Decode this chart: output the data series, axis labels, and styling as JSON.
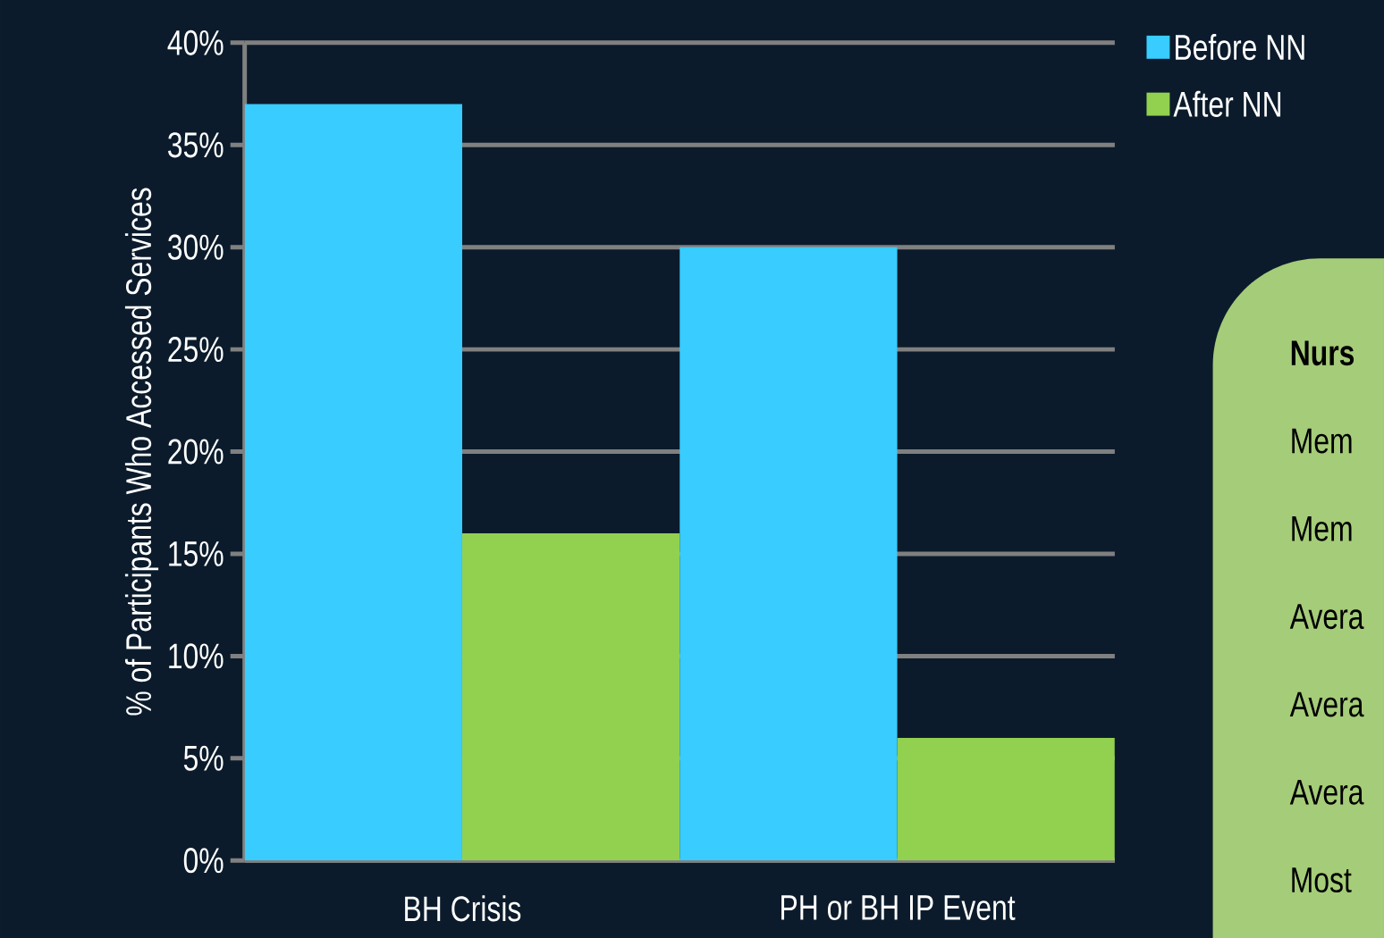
{
  "chart_data": {
    "type": "bar",
    "ylabel": "% of Participants Who Accessed Services",
    "categories": [
      "BH Crisis",
      "PH or BH IP Event"
    ],
    "series": [
      {
        "name": "Before NN",
        "color": "#38ccff",
        "values": [
          37,
          30
        ]
      },
      {
        "name": "After NN",
        "color": "#92d050",
        "values": [
          16,
          6
        ]
      }
    ],
    "ylim": [
      0,
      40
    ],
    "yticks": [
      {
        "value": 0,
        "label": "0%"
      },
      {
        "value": 5,
        "label": "5%"
      },
      {
        "value": 10,
        "label": "10%"
      },
      {
        "value": 15,
        "label": "15%"
      },
      {
        "value": 20,
        "label": "20%"
      },
      {
        "value": 25,
        "label": "25%"
      },
      {
        "value": 30,
        "label": "30%"
      },
      {
        "value": 35,
        "label": "35%"
      },
      {
        "value": 40,
        "label": "40%"
      }
    ],
    "grid": "y",
    "legend": "top right",
    "annotations": [
      "Nurs",
      "Mem",
      "Mem",
      "Avera",
      "Avera",
      "Avera",
      "Most"
    ]
  }
}
